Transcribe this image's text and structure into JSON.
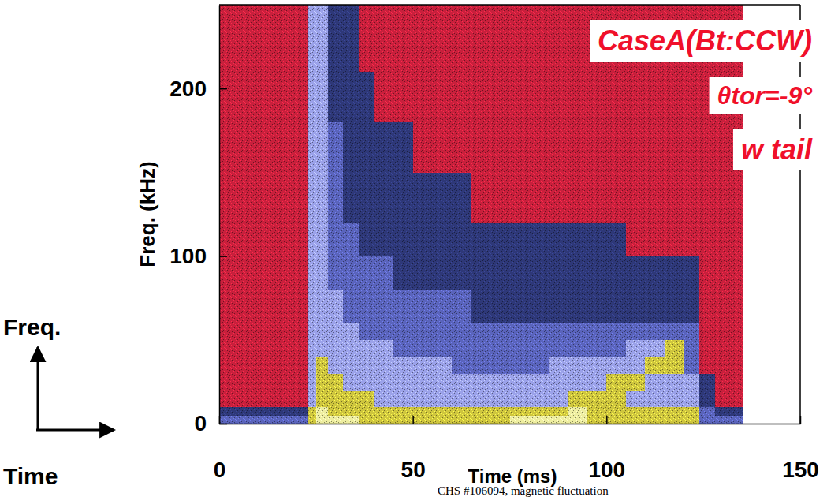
{
  "chart_data": {
    "type": "heatmap",
    "annotations": [
      "CaseA(Bt:CCW)",
      "θtor=-9°",
      "w tail"
    ],
    "caption": "CHS #106094, magnetic fluctuation",
    "x_label": "Time (ms)",
    "y_label": "Freq. (kHz)",
    "arrow_labels": [
      "Freq.",
      "Time"
    ],
    "xlim": [
      0,
      150
    ],
    "ylim": [
      0,
      250
    ],
    "xticks": [
      0,
      50,
      100,
      150
    ],
    "yticks": [
      0,
      100,
      200
    ],
    "x_edges": [
      0,
      10,
      20,
      23,
      25,
      28,
      32,
      36,
      40,
      45,
      50,
      55,
      60,
      65,
      70,
      75,
      80,
      85,
      90,
      95,
      100,
      105,
      110,
      115,
      120,
      124,
      128,
      135
    ],
    "y_edges": [
      0,
      5,
      10,
      20,
      30,
      40,
      50,
      60,
      80,
      100,
      120,
      150,
      180,
      210,
      250
    ],
    "colors": [
      "#c8203c",
      "#2e3878",
      "#5a64bc",
      "#9ba2ea",
      "#cfc63e",
      "#eeeea0"
    ],
    "cells": [
      [
        2,
        1,
        0,
        0,
        0,
        0,
        0,
        0,
        0,
        0,
        0,
        0,
        0,
        0
      ],
      [
        2,
        1,
        0,
        0,
        0,
        0,
        0,
        0,
        0,
        0,
        0,
        0,
        0,
        0
      ],
      [
        2,
        1,
        0,
        0,
        0,
        0,
        0,
        0,
        0,
        0,
        0,
        0,
        0,
        0
      ],
      [
        4,
        4,
        3,
        3,
        3,
        3,
        3,
        3,
        3,
        3,
        3,
        3,
        3,
        3
      ],
      [
        5,
        5,
        4,
        4,
        4,
        3,
        3,
        3,
        3,
        3,
        3,
        3,
        3,
        3
      ],
      [
        5,
        4,
        4,
        4,
        3,
        3,
        3,
        3,
        2,
        2,
        2,
        2,
        1,
        1
      ],
      [
        5,
        4,
        4,
        3,
        3,
        3,
        3,
        2,
        2,
        2,
        1,
        1,
        1,
        1
      ],
      [
        4,
        4,
        4,
        3,
        3,
        3,
        2,
        2,
        2,
        1,
        1,
        1,
        1,
        0
      ],
      [
        4,
        4,
        3,
        3,
        3,
        3,
        2,
        2,
        2,
        1,
        1,
        1,
        0,
        0
      ],
      [
        4,
        4,
        3,
        3,
        3,
        2,
        2,
        2,
        1,
        1,
        1,
        1,
        0,
        0
      ],
      [
        4,
        4,
        3,
        3,
        3,
        2,
        2,
        2,
        1,
        1,
        1,
        0,
        0,
        0
      ],
      [
        4,
        4,
        3,
        3,
        3,
        2,
        2,
        2,
        1,
        1,
        1,
        0,
        0,
        0
      ],
      [
        4,
        4,
        3,
        3,
        2,
        2,
        2,
        2,
        1,
        1,
        1,
        0,
        0,
        0
      ],
      [
        4,
        4,
        3,
        3,
        2,
        2,
        2,
        1,
        1,
        1,
        0,
        0,
        0,
        0
      ],
      [
        4,
        4,
        3,
        3,
        2,
        2,
        2,
        1,
        1,
        1,
        0,
        0,
        0,
        0
      ],
      [
        5,
        4,
        3,
        3,
        2,
        2,
        2,
        1,
        1,
        1,
        0,
        0,
        0,
        0
      ],
      [
        5,
        4,
        3,
        3,
        2,
        2,
        2,
        1,
        1,
        1,
        0,
        0,
        0,
        0
      ],
      [
        5,
        4,
        3,
        3,
        3,
        2,
        2,
        1,
        1,
        1,
        0,
        0,
        0,
        0
      ],
      [
        5,
        5,
        4,
        3,
        3,
        2,
        2,
        1,
        1,
        1,
        0,
        0,
        0,
        0
      ],
      [
        4,
        4,
        4,
        3,
        3,
        2,
        2,
        1,
        1,
        1,
        0,
        0,
        0,
        0
      ],
      [
        4,
        4,
        4,
        4,
        3,
        2,
        2,
        1,
        1,
        1,
        0,
        0,
        0,
        0
      ],
      [
        4,
        4,
        3,
        4,
        3,
        3,
        2,
        1,
        1,
        0,
        0,
        0,
        0,
        0
      ],
      [
        4,
        4,
        3,
        3,
        4,
        3,
        2,
        1,
        1,
        0,
        0,
        0,
        0,
        0
      ],
      [
        4,
        4,
        3,
        3,
        4,
        4,
        2,
        1,
        1,
        0,
        0,
        0,
        0,
        0
      ],
      [
        4,
        4,
        3,
        3,
        2,
        2,
        2,
        1,
        1,
        0,
        0,
        0,
        0,
        0
      ],
      [
        2,
        2,
        1,
        1,
        0,
        0,
        0,
        0,
        0,
        0,
        0,
        0,
        0,
        0
      ],
      [
        2,
        1,
        0,
        0,
        0,
        0,
        0,
        0,
        0,
        0,
        0,
        0,
        0,
        0
      ]
    ]
  }
}
